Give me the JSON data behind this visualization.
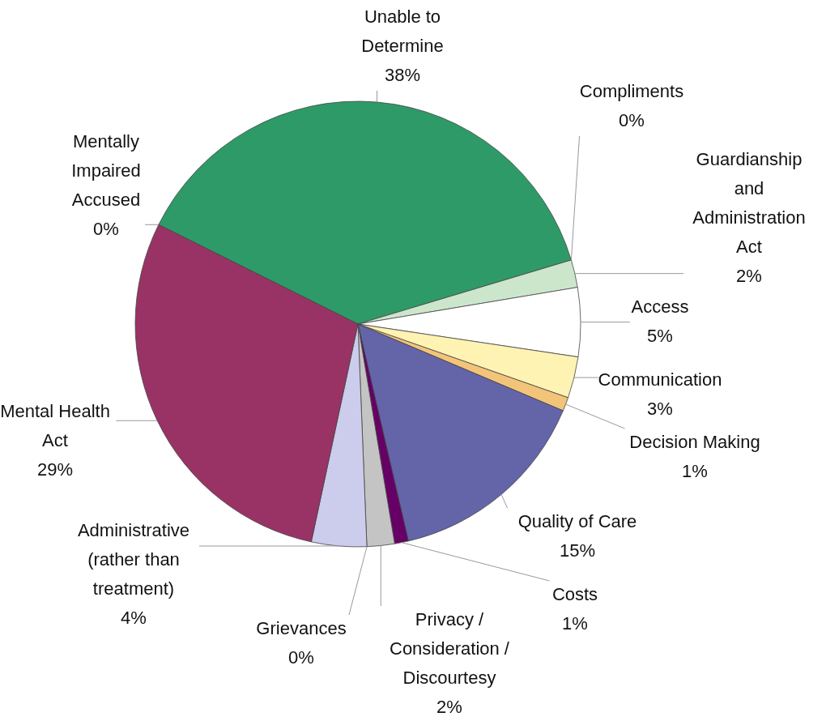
{
  "chart_data": {
    "type": "pie",
    "categories": [
      "Unable to Determine",
      "Compliments",
      "Guardianship and Administration Act",
      "Access",
      "Communication",
      "Decision Making",
      "Quality of Care",
      "Costs",
      "Privacy / Consideration / Discourtesy",
      "Grievances",
      "Administrative (rather than treatment)",
      "Mental Health Act",
      "Mentally Impaired Accused"
    ],
    "values": [
      38,
      0,
      2,
      5,
      3,
      1,
      15,
      1,
      2,
      0,
      4,
      29,
      0
    ],
    "value_labels": [
      "38%",
      "0%",
      "2%",
      "5%",
      "3%",
      "1%",
      "15%",
      "1%",
      "2%",
      "0%",
      "4%",
      "29%",
      "0%"
    ],
    "colors": [
      "#2e9a68",
      "#000000",
      "#cce6cc",
      "#ffffff",
      "#fff3b3",
      "#f2c47a",
      "#6464a8",
      "#660066",
      "#c4c4c4",
      "#a0a0a0",
      "#ccccec",
      "#993366",
      "#808080"
    ]
  }
}
